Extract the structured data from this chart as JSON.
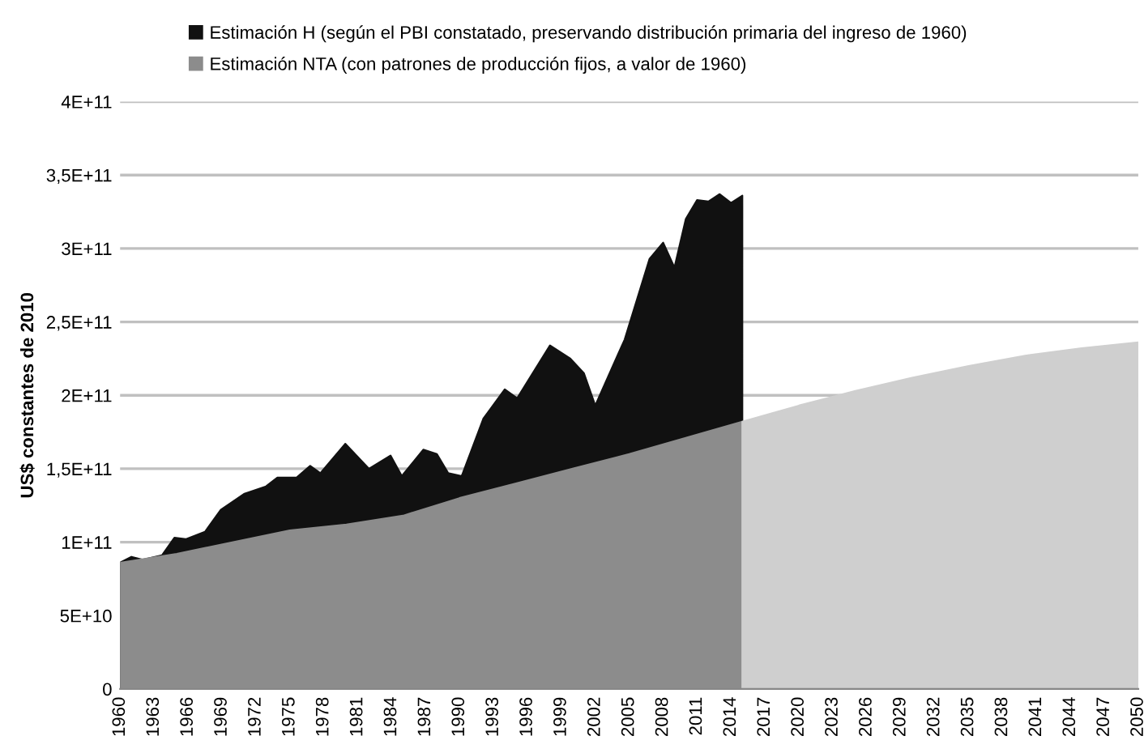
{
  "chart_data": {
    "type": "area",
    "ylabel": "US$ constantes de 2010",
    "legend": "top",
    "grid": "y",
    "xlim": [
      1960,
      2050
    ],
    "xticks": [
      1960,
      1963,
      1966,
      1969,
      1972,
      1975,
      1978,
      1981,
      1984,
      1987,
      1990,
      1993,
      1996,
      1999,
      2002,
      2005,
      2008,
      2011,
      2014,
      2017,
      2020,
      2023,
      2026,
      2029,
      2032,
      2035,
      2038,
      2041,
      2044,
      2047,
      2050
    ],
    "ylim": [
      0,
      400000000000
    ],
    "yticks": [
      0,
      {
        "value": 50000000000,
        "label": "5E+10"
      },
      {
        "value": 100000000000,
        "label": "1E+11"
      },
      {
        "value": 150000000000,
        "label": "1,5E+11"
      },
      {
        "value": 200000000000,
        "label": "2E+11"
      },
      {
        "value": 250000000000,
        "label": "2,5E+11"
      },
      {
        "value": 300000000000,
        "label": "3E+11"
      },
      {
        "value": 350000000000,
        "label": "3,5E+11"
      },
      {
        "value": 400000000000,
        "label": "4E+11"
      }
    ],
    "series": [
      {
        "name": "Estimación H (según el PBI constatado, preservando distribución primaria del ingreso de 1960)",
        "color": "#111111",
        "x": [
          1960,
          1961,
          1962,
          1963.7,
          1964.8,
          1965.8,
          1967.5,
          1968.9,
          1971,
          1972.9,
          1973.9,
          1975.6,
          1976.8,
          1977.7,
          1979.9,
          1982,
          1983.9,
          1984.9,
          1986.8,
          1988,
          1989,
          1990.2,
          1992.1,
          1994,
          1995.1,
          1998,
          1999.8,
          2001,
          2002,
          2004.6,
          2006.8,
          2008,
          2009,
          2010,
          2011,
          2012,
          2013,
          2014,
          2015
        ],
        "values": [
          86000000000,
          90000000000,
          88000000000,
          91000000000,
          103000000000,
          102000000000,
          107000000000,
          122000000000,
          133000000000,
          138000000000,
          144000000000,
          144000000000,
          152000000000,
          147000000000,
          167000000000,
          150000000000,
          159000000000,
          145000000000,
          163000000000,
          160000000000,
          147000000000,
          145000000000,
          184000000000,
          204000000000,
          198000000000,
          234000000000,
          225000000000,
          215000000000,
          193000000000,
          238000000000,
          293000000000,
          304000000000,
          287000000000,
          320000000000,
          333000000000,
          332000000000,
          337000000000,
          331000000000,
          336000000000
        ]
      },
      {
        "name": "Estimación NTA (con patrones de producción fijos, a valor de 1960)",
        "color": "#8c8c8c",
        "x": [
          1960,
          1965,
          1970,
          1975,
          1980,
          1985,
          1990,
          1995,
          2000,
          2005,
          2010,
          2015
        ],
        "values": [
          86000000000,
          92000000000,
          100000000000,
          108000000000,
          112000000000,
          118000000000,
          130000000000,
          140000000000,
          150000000000,
          160000000000,
          171000000000,
          182000000000
        ]
      },
      {
        "color": "#cfcfcf",
        "x": [
          2015,
          2020,
          2025,
          2030,
          2035,
          2040,
          2045,
          2050
        ],
        "values": [
          182000000000,
          193000000000,
          203000000000,
          212000000000,
          220000000000,
          227000000000,
          232000000000,
          236000000000
        ]
      }
    ]
  }
}
